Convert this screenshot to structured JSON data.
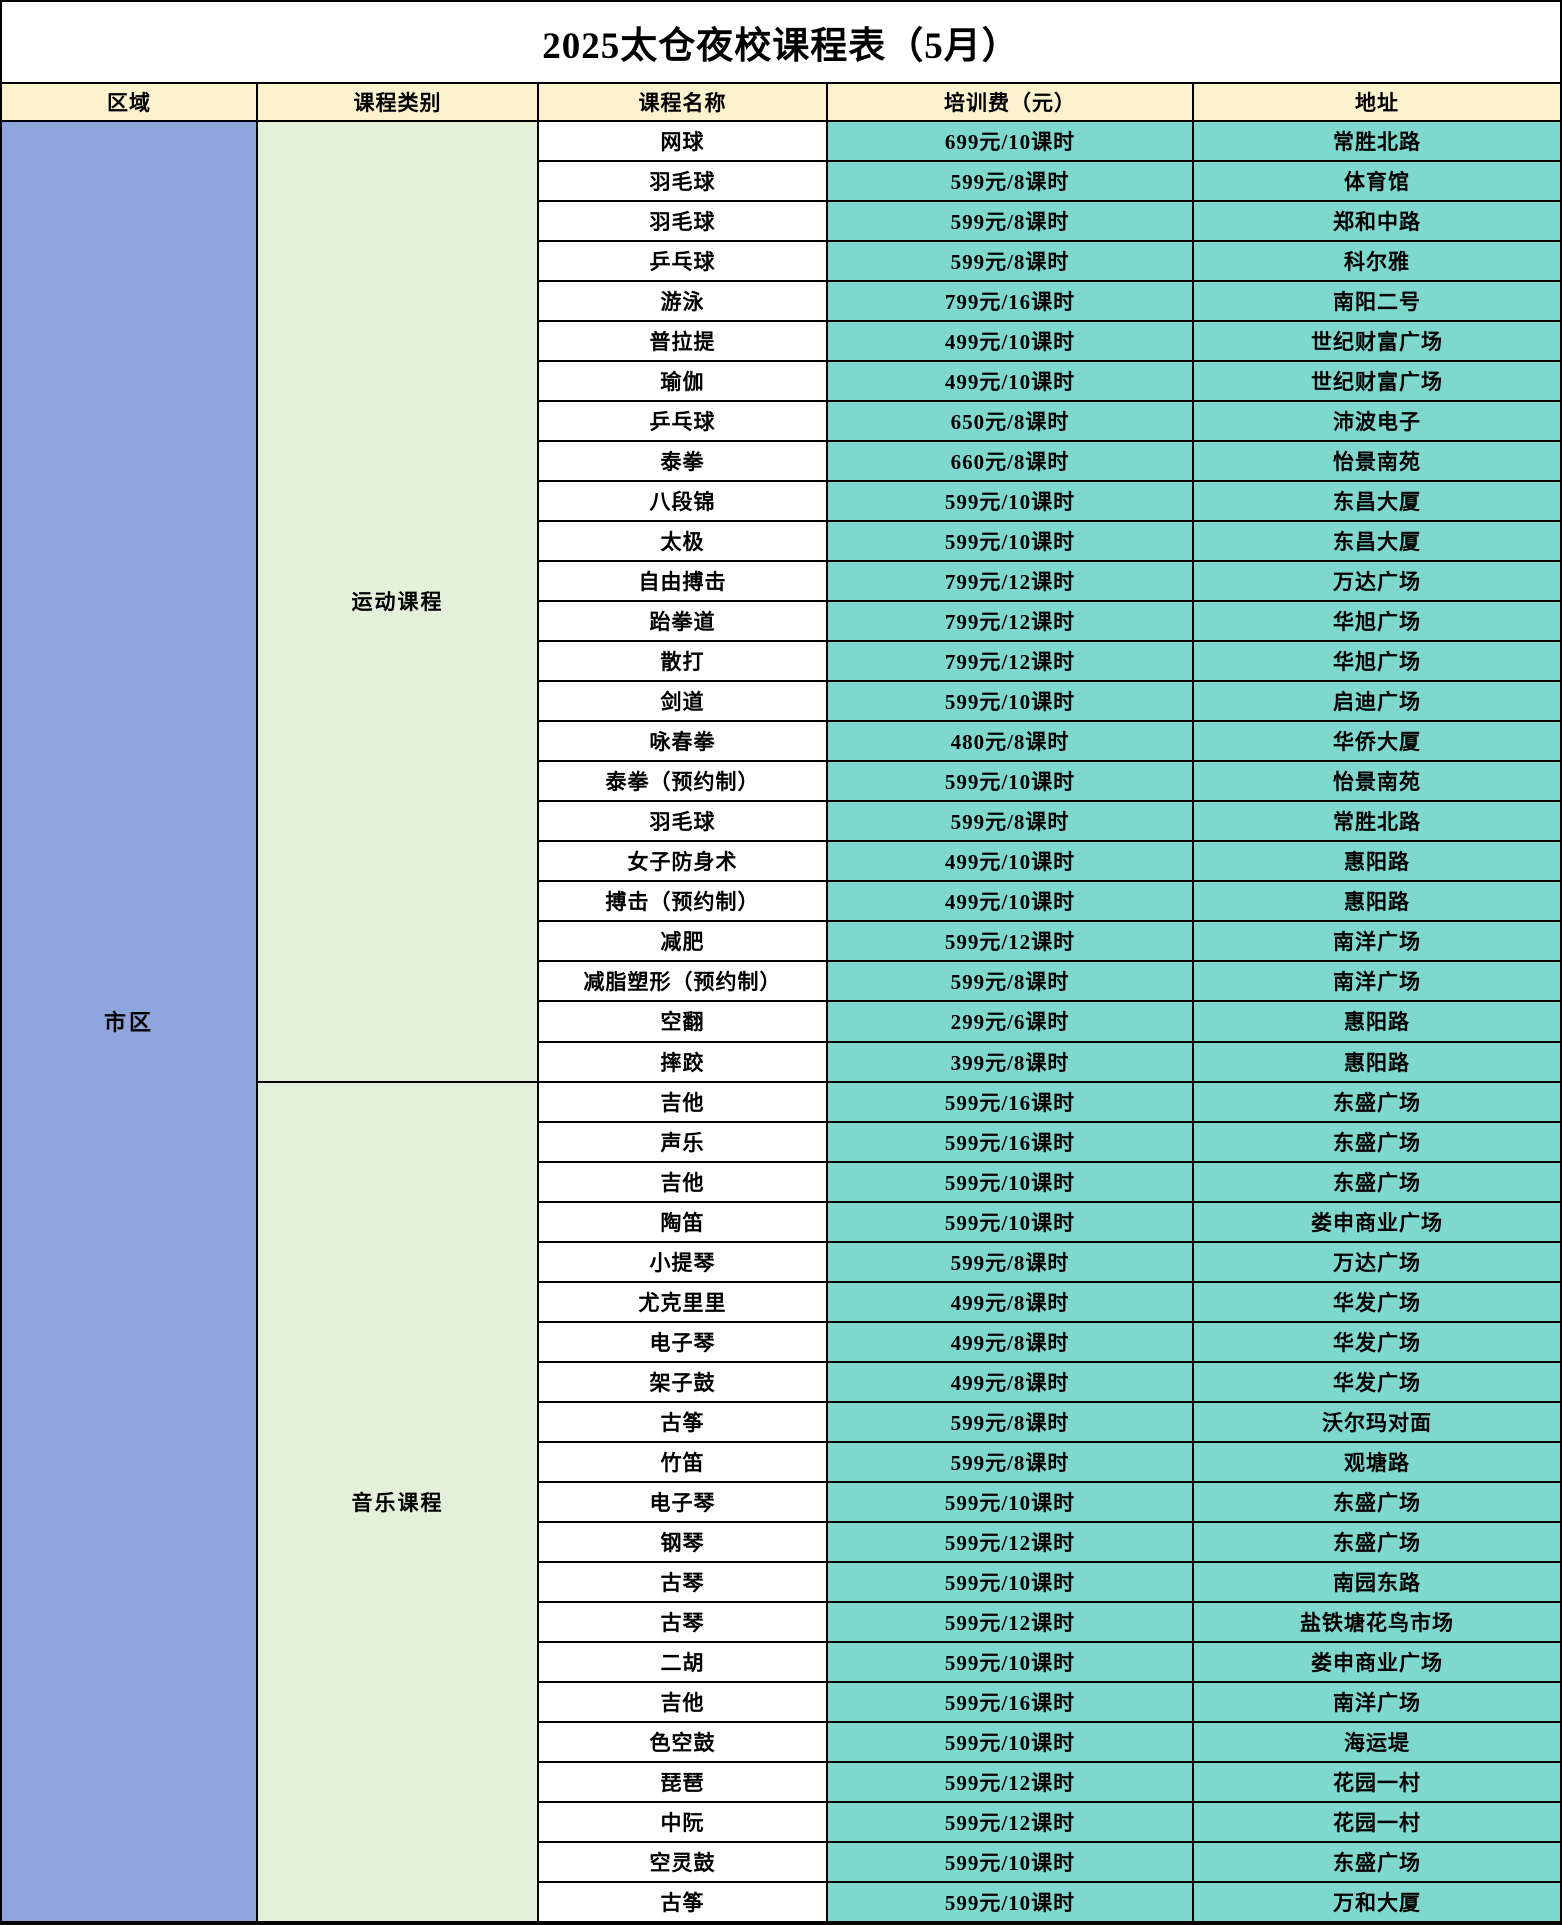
{
  "title": "2025太仓夜校课程表（5月）",
  "columns": [
    "区域",
    "课程类别",
    "课程名称",
    "培训费（元）",
    "地址"
  ],
  "region": "市区",
  "categories": [
    {
      "label": "运动课程",
      "row_count": 24
    },
    {
      "label": "音乐课程",
      "row_count": 21
    }
  ],
  "rows": [
    {
      "name": "网球",
      "fee": "699元/10课时",
      "address": "常胜北路"
    },
    {
      "name": "羽毛球",
      "fee": "599元/8课时",
      "address": "体育馆"
    },
    {
      "name": "羽毛球",
      "fee": "599元/8课时",
      "address": "郑和中路"
    },
    {
      "name": "乒乓球",
      "fee": "599元/8课时",
      "address": "科尔雅"
    },
    {
      "name": "游泳",
      "fee": "799元/16课时",
      "address": "南阳二号"
    },
    {
      "name": "普拉提",
      "fee": "499元/10课时",
      "address": "世纪财富广场"
    },
    {
      "name": "瑜伽",
      "fee": "499元/10课时",
      "address": "世纪财富广场"
    },
    {
      "name": "乒乓球",
      "fee": "650元/8课时",
      "address": "沛波电子"
    },
    {
      "name": "泰拳",
      "fee": "660元/8课时",
      "address": "怡景南苑"
    },
    {
      "name": "八段锦",
      "fee": "599元/10课时",
      "address": "东昌大厦"
    },
    {
      "name": "太极",
      "fee": "599元/10课时",
      "address": "东昌大厦"
    },
    {
      "name": "自由搏击",
      "fee": "799元/12课时",
      "address": "万达广场"
    },
    {
      "name": "跆拳道",
      "fee": "799元/12课时",
      "address": "华旭广场"
    },
    {
      "name": "散打",
      "fee": "799元/12课时",
      "address": "华旭广场"
    },
    {
      "name": "剑道",
      "fee": "599元/10课时",
      "address": "启迪广场"
    },
    {
      "name": "咏春拳",
      "fee": "480元/8课时",
      "address": "华侨大厦"
    },
    {
      "name": "泰拳（预约制）",
      "fee": "599元/10课时",
      "address": "怡景南苑"
    },
    {
      "name": "羽毛球",
      "fee": "599元/8课时",
      "address": "常胜北路"
    },
    {
      "name": "女子防身术",
      "fee": "499元/10课时",
      "address": "惠阳路"
    },
    {
      "name": "搏击（预约制）",
      "fee": "499元/10课时",
      "address": "惠阳路"
    },
    {
      "name": "减肥",
      "fee": "599元/12课时",
      "address": "南洋广场"
    },
    {
      "name": "减脂塑形（预约制）",
      "fee": "599元/8课时",
      "address": "南洋广场"
    },
    {
      "name": "空翻",
      "fee": "299元/6课时",
      "address": "惠阳路"
    },
    {
      "name": "摔跤",
      "fee": "399元/8课时",
      "address": "惠阳路"
    },
    {
      "name": "吉他",
      "fee": "599元/16课时",
      "address": "东盛广场"
    },
    {
      "name": "声乐",
      "fee": "599元/16课时",
      "address": "东盛广场"
    },
    {
      "name": "吉他",
      "fee": "599元/10课时",
      "address": "东盛广场"
    },
    {
      "name": "陶笛",
      "fee": "599元/10课时",
      "address": "娄申商业广场"
    },
    {
      "name": "小提琴",
      "fee": "599元/8课时",
      "address": "万达广场"
    },
    {
      "name": "尤克里里",
      "fee": "499元/8课时",
      "address": "华发广场"
    },
    {
      "name": "电子琴",
      "fee": "499元/8课时",
      "address": "华发广场"
    },
    {
      "name": "架子鼓",
      "fee": "499元/8课时",
      "address": "华发广场"
    },
    {
      "name": "古筝",
      "fee": "599元/8课时",
      "address": "沃尔玛对面"
    },
    {
      "name": "竹笛",
      "fee": "599元/8课时",
      "address": "观塘路"
    },
    {
      "name": "电子琴",
      "fee": "599元/10课时",
      "address": "东盛广场"
    },
    {
      "name": "钢琴",
      "fee": "599元/12课时",
      "address": "东盛广场"
    },
    {
      "name": "古琴",
      "fee": "599元/10课时",
      "address": "南园东路"
    },
    {
      "name": "古琴",
      "fee": "599元/12课时",
      "address": "盐铁塘花鸟市场"
    },
    {
      "name": "二胡",
      "fee": "599元/10课时",
      "address": "娄申商业广场"
    },
    {
      "name": "吉他",
      "fee": "599元/16课时",
      "address": "南洋广场"
    },
    {
      "name": "色空鼓",
      "fee": "599元/10课时",
      "address": "海运堤"
    },
    {
      "name": "琵琶",
      "fee": "599元/12课时",
      "address": "花园一村"
    },
    {
      "name": "中阮",
      "fee": "599元/12课时",
      "address": "花园一村"
    },
    {
      "name": "空灵鼓",
      "fee": "599元/10课时",
      "address": "东盛广场"
    },
    {
      "name": "古筝",
      "fee": "599元/10课时",
      "address": "万和大厦"
    }
  ],
  "colors": {
    "header_bg": "#fcf2ce",
    "region_bg": "#8fa6dd",
    "category_bg": "#e3f0da",
    "course_bg": "#ffffff",
    "teal_bg": "#7ed8ce",
    "border_color": "#000000"
  }
}
